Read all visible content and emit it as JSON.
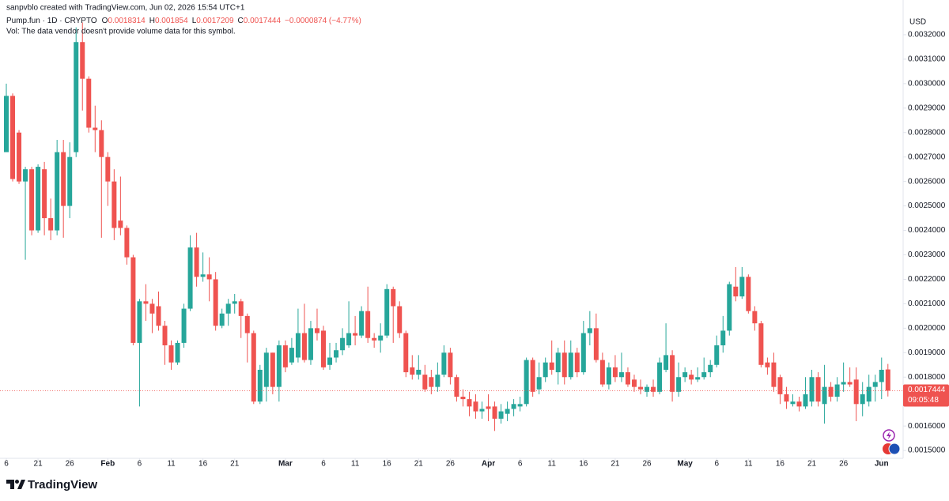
{
  "header": {
    "author_line": "sanpvblo created with TradingView.com, Jun 02, 2026 15:54 UTC+1",
    "symbol": "Pump.fun · 1D · CRYPTO",
    "ohlc_letters": [
      "O",
      "H",
      "L",
      "C"
    ],
    "change": "−0.0000874 (−4.77%)",
    "volume_note": "Vol: The data vendor doesn't provide volume data for this symbol.",
    "brand": "TradingView"
  },
  "chart_data": {
    "type": "candlestick",
    "currency": "USD",
    "countdown": "09:05:48",
    "up_color": "#26a69a",
    "down_color": "#ef5350",
    "grid": false,
    "ylim": [
      0.001468,
      0.003342
    ],
    "yticks": [
      {
        "value": 0.0015,
        "label": "0.0015000"
      },
      {
        "value": 0.0016,
        "label": "0.0016000"
      },
      {
        "value": 0.0017,
        "label": "0.0017000"
      },
      {
        "value": 0.0018,
        "label": "0.0018000"
      },
      {
        "value": 0.0019,
        "label": "0.0019000"
      },
      {
        "value": 0.002,
        "label": "0.0020000"
      },
      {
        "value": 0.0021,
        "label": "0.0021000"
      },
      {
        "value": 0.0022,
        "label": "0.0022000"
      },
      {
        "value": 0.0023,
        "label": "0.0023000"
      },
      {
        "value": 0.0024,
        "label": "0.0024000"
      },
      {
        "value": 0.0025,
        "label": "0.0025000"
      },
      {
        "value": 0.0026,
        "label": "0.0026000"
      },
      {
        "value": 0.0027,
        "label": "0.0027000"
      },
      {
        "value": 0.0028,
        "label": "0.0028000"
      },
      {
        "value": 0.0029,
        "label": "0.0029000"
      },
      {
        "value": 0.003,
        "label": "0.0030000"
      },
      {
        "value": 0.0031,
        "label": "0.0031000"
      },
      {
        "value": 0.0032,
        "label": "0.0032000"
      }
    ],
    "xticks": [
      {
        "value": 0,
        "label": "6"
      },
      {
        "value": 5,
        "label": "21"
      },
      {
        "value": 10,
        "label": "26"
      },
      {
        "value": 16,
        "label": "Feb"
      },
      {
        "value": 21,
        "label": "6"
      },
      {
        "value": 26,
        "label": "11"
      },
      {
        "value": 31,
        "label": "16"
      },
      {
        "value": 36,
        "label": "21"
      },
      {
        "value": 44,
        "label": "Mar"
      },
      {
        "value": 50,
        "label": "6"
      },
      {
        "value": 55,
        "label": "11"
      },
      {
        "value": 60,
        "label": "16"
      },
      {
        "value": 65,
        "label": "21"
      },
      {
        "value": 70,
        "label": "26"
      },
      {
        "value": 76,
        "label": "Apr"
      },
      {
        "value": 81,
        "label": "6"
      },
      {
        "value": 86,
        "label": "11"
      },
      {
        "value": 91,
        "label": "16"
      },
      {
        "value": 96,
        "label": "21"
      },
      {
        "value": 101,
        "label": "26"
      },
      {
        "value": 107,
        "label": "May"
      },
      {
        "value": 112,
        "label": "6"
      },
      {
        "value": 117,
        "label": "11"
      },
      {
        "value": 122,
        "label": "16"
      },
      {
        "value": 127,
        "label": "21"
      },
      {
        "value": 132,
        "label": "26"
      },
      {
        "value": 138,
        "label": "Jun"
      }
    ],
    "open": [
      0.00272,
      0.00295,
      0.0028,
      0.0026,
      0.00265,
      0.0024,
      0.00265,
      0.00245,
      0.0024,
      0.00272,
      0.0025,
      0.00272,
      0.00317,
      0.00302,
      0.00282,
      0.00281,
      0.0027,
      0.0026,
      0.00244,
      0.00241,
      0.00229,
      0.00194,
      0.00211,
      0.0021,
      0.00209,
      0.00201,
      0.00193,
      0.00186,
      0.00194,
      0.00208,
      0.00233,
      0.00221,
      0.00222,
      0.0022,
      0.00201,
      0.00206,
      0.0021,
      0.00211,
      0.00205,
      0.00198,
      0.0017,
      0.00176,
      0.0019,
      0.00176,
      0.00193,
      0.00186,
      0.00188,
      0.00198,
      0.00187,
      0.002,
      0.00199,
      0.00185,
      0.00188,
      0.00191,
      0.00193,
      0.00198,
      0.00197,
      0.00207,
      0.00196,
      0.00195,
      0.00197,
      0.00216,
      0.00209,
      0.00198,
      0.00184,
      0.00181,
      0.00181,
      0.0018,
      0.00176,
      0.00181,
      0.0019,
      0.0018,
      0.00172,
      0.00171,
      0.0017,
      0.00166,
      0.00168,
      0.00168,
      0.00163,
      0.00165,
      0.00167,
      0.00168,
      0.00169,
      0.00187,
      0.00175,
      0.0018,
      0.00186,
      0.00182,
      0.0019,
      0.0018,
      0.0019,
      0.00182,
      0.00198,
      0.002,
      0.00187,
      0.00177,
      0.00184,
      0.0018,
      0.00182,
      0.00179,
      0.00176,
      0.00174,
      0.00176,
      0.00174,
      0.00183,
      0.00189,
      0.00174,
      0.0018,
      0.00181,
      0.00179,
      0.0018,
      0.00182,
      0.00185,
      0.00193,
      0.00199,
      0.00217,
      0.00213,
      0.00221,
      0.00207,
      0.00202,
      0.00186,
      0.00186,
      0.0018,
      0.00173,
      0.00169,
      0.0017,
      0.00168,
      0.0017,
      0.0018,
      0.00169,
      0.00176,
      0.00172,
      0.00177,
      0.00178,
      0.00179,
      0.00169,
      0.0017,
      0.00176,
      0.00178,
      0.0018314
    ],
    "high": [
      0.003,
      0.00296,
      0.00281,
      0.00266,
      0.00266,
      0.00267,
      0.00268,
      0.00253,
      0.00277,
      0.00277,
      0.00276,
      0.00323,
      0.00325,
      0.00303,
      0.00291,
      0.00285,
      0.00272,
      0.00265,
      0.00262,
      0.00242,
      0.0023,
      0.00212,
      0.00218,
      0.00212,
      0.00215,
      0.00203,
      0.00195,
      0.00195,
      0.0021,
      0.00238,
      0.00239,
      0.00231,
      0.00229,
      0.00223,
      0.00208,
      0.00212,
      0.00214,
      0.00212,
      0.00206,
      0.00199,
      0.00185,
      0.00192,
      0.0019,
      0.00195,
      0.00195,
      0.00196,
      0.00208,
      0.0021,
      0.00203,
      0.00208,
      0.00201,
      0.00194,
      0.00194,
      0.002,
      0.00211,
      0.00205,
      0.00209,
      0.00217,
      0.00198,
      0.00202,
      0.00218,
      0.00217,
      0.00211,
      0.00199,
      0.00189,
      0.00189,
      0.00185,
      0.00183,
      0.00186,
      0.00193,
      0.00192,
      0.00181,
      0.00175,
      0.00174,
      0.00173,
      0.0017,
      0.00173,
      0.0017,
      0.00169,
      0.0017,
      0.00171,
      0.00172,
      0.00188,
      0.00188,
      0.00186,
      0.00188,
      0.00195,
      0.00192,
      0.00195,
      0.00195,
      0.00192,
      0.00203,
      0.00207,
      0.00206,
      0.0019,
      0.00186,
      0.00189,
      0.0019,
      0.00184,
      0.00181,
      0.00179,
      0.00177,
      0.00179,
      0.00188,
      0.00202,
      0.00191,
      0.00186,
      0.00184,
      0.00183,
      0.00184,
      0.00188,
      0.00187,
      0.00197,
      0.00205,
      0.00219,
      0.00225,
      0.00225,
      0.00222,
      0.00209,
      0.00203,
      0.00188,
      0.0019,
      0.00181,
      0.00176,
      0.00173,
      0.00172,
      0.0018,
      0.00183,
      0.00182,
      0.00185,
      0.00178,
      0.0018,
      0.00186,
      0.00184,
      0.00184,
      0.00178,
      0.00181,
      0.00181,
      0.00188,
      0.001854
    ],
    "low": [
      0.00272,
      0.0026,
      0.00259,
      0.00228,
      0.00238,
      0.00239,
      0.00238,
      0.00236,
      0.00238,
      0.00237,
      0.00245,
      0.0027,
      0.00289,
      0.0028,
      0.00272,
      0.00237,
      0.0025,
      0.00236,
      0.00238,
      0.00226,
      0.00193,
      0.00168,
      0.00203,
      0.00198,
      0.00199,
      0.00185,
      0.00183,
      0.00185,
      0.00192,
      0.00207,
      0.00217,
      0.00219,
      0.00211,
      0.00199,
      0.002,
      0.00201,
      0.00206,
      0.00196,
      0.00186,
      0.00169,
      0.00169,
      0.0017,
      0.00173,
      0.0017,
      0.00182,
      0.00185,
      0.00186,
      0.00186,
      0.00185,
      0.00195,
      0.00183,
      0.00183,
      0.00186,
      0.00189,
      0.00192,
      0.00193,
      0.00196,
      0.00194,
      0.00192,
      0.0019,
      0.00196,
      0.00194,
      0.00196,
      0.0018,
      0.00179,
      0.00179,
      0.00174,
      0.00173,
      0.00174,
      0.0018,
      0.00177,
      0.0017,
      0.00168,
      0.00164,
      0.00163,
      0.00163,
      0.00162,
      0.00158,
      0.00161,
      0.00162,
      0.00164,
      0.00166,
      0.00168,
      0.00172,
      0.00173,
      0.00178,
      0.00181,
      0.00177,
      0.00177,
      0.00179,
      0.0018,
      0.00181,
      0.00193,
      0.00186,
      0.00176,
      0.00175,
      0.00178,
      0.00178,
      0.00176,
      0.00174,
      0.00173,
      0.00172,
      0.00172,
      0.00173,
      0.00182,
      0.0017,
      0.00172,
      0.00178,
      0.00177,
      0.00178,
      0.00179,
      0.0018,
      0.00184,
      0.0019,
      0.00197,
      0.00211,
      0.00212,
      0.00206,
      0.00199,
      0.00184,
      0.00181,
      0.00174,
      0.00169,
      0.00167,
      0.00168,
      0.00166,
      0.00167,
      0.00168,
      0.00168,
      0.00161,
      0.0017,
      0.0017,
      0.00174,
      0.00176,
      0.00162,
      0.00164,
      0.00168,
      0.0017,
      0.00171,
      0.0017209
    ],
    "close": [
      0.00295,
      0.00261,
      0.0026,
      0.00265,
      0.0024,
      0.00266,
      0.00245,
      0.0024,
      0.00272,
      0.0025,
      0.0027,
      0.00317,
      0.00302,
      0.00282,
      0.00281,
      0.0027,
      0.0026,
      0.00241,
      0.00241,
      0.00229,
      0.00194,
      0.00211,
      0.0021,
      0.00206,
      0.00201,
      0.00193,
      0.00186,
      0.00194,
      0.00208,
      0.00233,
      0.00221,
      0.00222,
      0.0022,
      0.00201,
      0.00206,
      0.0021,
      0.00211,
      0.00205,
      0.00198,
      0.0017,
      0.00183,
      0.0019,
      0.00176,
      0.00193,
      0.00184,
      0.00192,
      0.00198,
      0.00187,
      0.002,
      0.00198,
      0.00184,
      0.00188,
      0.00191,
      0.00196,
      0.00198,
      0.00197,
      0.00207,
      0.00196,
      0.00195,
      0.00197,
      0.00216,
      0.00209,
      0.00198,
      0.00182,
      0.00181,
      0.00183,
      0.00175,
      0.00176,
      0.00181,
      0.0019,
      0.0018,
      0.00172,
      0.00171,
      0.00168,
      0.00166,
      0.00167,
      0.00167,
      0.00163,
      0.00166,
      0.00167,
      0.00169,
      0.00169,
      0.00187,
      0.00174,
      0.0018,
      0.00186,
      0.00183,
      0.0019,
      0.0018,
      0.0019,
      0.00182,
      0.00198,
      0.002,
      0.00187,
      0.00177,
      0.00184,
      0.0018,
      0.00182,
      0.00177,
      0.00176,
      0.00175,
      0.00176,
      0.00174,
      0.00186,
      0.00189,
      0.00174,
      0.0018,
      0.00182,
      0.00179,
      0.0018,
      0.00182,
      0.00185,
      0.00193,
      0.00199,
      0.00218,
      0.00213,
      0.00221,
      0.00207,
      0.00202,
      0.00185,
      0.00184,
      0.00176,
      0.00173,
      0.0017,
      0.0017,
      0.00168,
      0.00173,
      0.0018,
      0.0017,
      0.00176,
      0.00172,
      0.00177,
      0.00178,
      0.00177,
      0.00169,
      0.00173,
      0.00176,
      0.00178,
      0.00183,
      0.0017444
    ]
  }
}
